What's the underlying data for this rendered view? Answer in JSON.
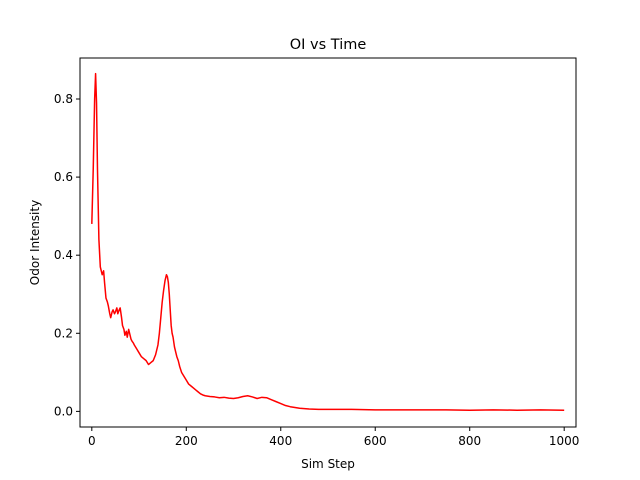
{
  "chart_data": {
    "type": "line",
    "title": "OI vs Time",
    "xlabel": "Sim Step",
    "ylabel": "Odor Intensity",
    "xlim": [
      -25,
      1025
    ],
    "ylim": [
      -0.04,
      0.905
    ],
    "grid": false,
    "xticks": [
      0,
      200,
      400,
      600,
      800,
      1000
    ],
    "yticks": [
      0.0,
      0.2,
      0.4,
      0.6,
      0.8
    ],
    "xtick_labels": [
      "0",
      "200",
      "400",
      "600",
      "800",
      "1000"
    ],
    "ytick_labels": [
      "0.0",
      "0.2",
      "0.4",
      "0.6",
      "0.8"
    ],
    "series": [
      {
        "color": "#ff0000",
        "x": [
          0,
          3,
          6,
          8,
          10,
          12,
          15,
          18,
          20,
          22,
          25,
          27,
          30,
          33,
          35,
          38,
          40,
          43,
          45,
          48,
          50,
          53,
          55,
          58,
          60,
          63,
          65,
          68,
          70,
          73,
          75,
          78,
          80,
          83,
          85,
          88,
          90,
          95,
          100,
          105,
          110,
          115,
          120,
          125,
          130,
          135,
          140,
          143,
          146,
          149,
          152,
          155,
          158,
          160,
          162,
          164,
          166,
          168,
          170,
          172,
          175,
          178,
          180,
          183,
          186,
          190,
          195,
          200,
          205,
          210,
          215,
          220,
          225,
          230,
          235,
          240,
          250,
          260,
          270,
          280,
          290,
          300,
          310,
          320,
          330,
          340,
          350,
          360,
          370,
          380,
          390,
          400,
          410,
          420,
          430,
          440,
          450,
          460,
          480,
          500,
          550,
          600,
          650,
          700,
          750,
          800,
          850,
          900,
          950,
          1000
        ],
        "values": [
          0.48,
          0.62,
          0.8,
          0.865,
          0.79,
          0.62,
          0.44,
          0.37,
          0.36,
          0.35,
          0.36,
          0.33,
          0.29,
          0.28,
          0.27,
          0.25,
          0.24,
          0.255,
          0.26,
          0.25,
          0.255,
          0.265,
          0.25,
          0.26,
          0.265,
          0.24,
          0.22,
          0.21,
          0.195,
          0.205,
          0.19,
          0.21,
          0.2,
          0.185,
          0.18,
          0.175,
          0.17,
          0.16,
          0.15,
          0.14,
          0.135,
          0.13,
          0.12,
          0.125,
          0.13,
          0.145,
          0.17,
          0.2,
          0.24,
          0.28,
          0.31,
          0.335,
          0.35,
          0.345,
          0.33,
          0.3,
          0.26,
          0.22,
          0.2,
          0.19,
          0.165,
          0.15,
          0.14,
          0.13,
          0.115,
          0.1,
          0.09,
          0.08,
          0.07,
          0.065,
          0.06,
          0.055,
          0.05,
          0.045,
          0.042,
          0.04,
          0.038,
          0.037,
          0.035,
          0.036,
          0.034,
          0.033,
          0.035,
          0.038,
          0.04,
          0.037,
          0.033,
          0.036,
          0.035,
          0.03,
          0.025,
          0.02,
          0.015,
          0.012,
          0.01,
          0.008,
          0.007,
          0.006,
          0.005,
          0.005,
          0.005,
          0.004,
          0.004,
          0.004,
          0.004,
          0.003,
          0.004,
          0.003,
          0.004,
          0.003
        ]
      }
    ]
  }
}
